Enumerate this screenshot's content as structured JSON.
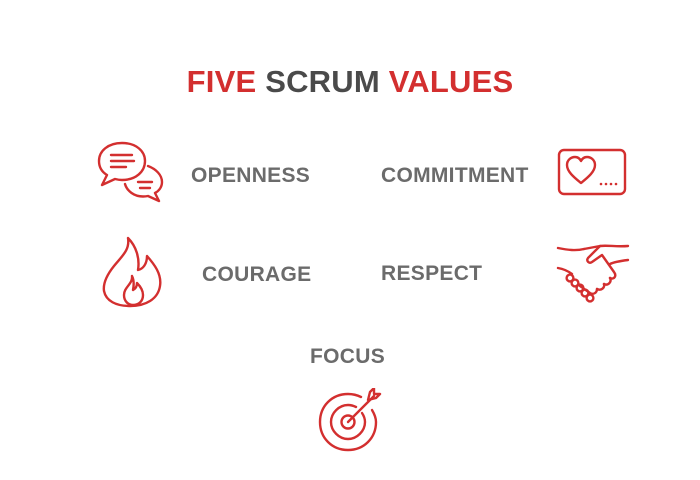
{
  "title": {
    "word1": "FIVE",
    "word2": "SCRUM",
    "word3": "VALUES"
  },
  "values": {
    "openness": "OPENNESS",
    "commitment": "COMMITMENT",
    "courage": "COURAGE",
    "respect": "RESPECT",
    "focus": "FOCUS"
  },
  "icons": {
    "openness": "speech-bubbles-icon",
    "commitment": "heart-card-icon",
    "courage": "flame-icon",
    "respect": "handshake-icon",
    "focus": "target-arrow-icon"
  },
  "colors": {
    "accent": "#d32f2f",
    "title_gray": "#4a4a4a",
    "label_gray": "#6b6b6b"
  }
}
